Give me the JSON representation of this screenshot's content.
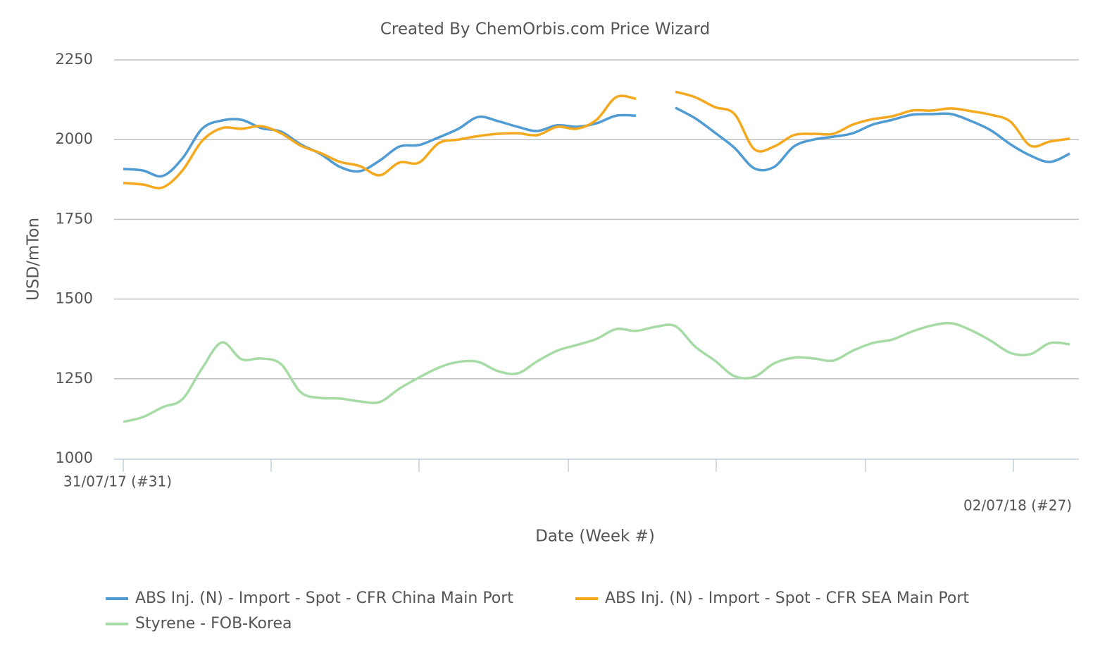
{
  "chart_data": {
    "type": "line",
    "title": "Created By ChemOrbis.com Price Wizard",
    "x_label": "Date (Week #)",
    "y_label": "USD/mTon",
    "categories": [
      "31/07/17 (#31)",
      null,
      null,
      null,
      null,
      null,
      null,
      null,
      null,
      null,
      null,
      null,
      null,
      null,
      null,
      null,
      null,
      null,
      null,
      null,
      null,
      null,
      null,
      null,
      null,
      null,
      null,
      null,
      null,
      null,
      null,
      null,
      null,
      null,
      null,
      null,
      null,
      null,
      null,
      null,
      null,
      null,
      null,
      null,
      null,
      null,
      null,
      null,
      "02/07/18 (#27)"
    ],
    "series": [
      {
        "name": "ABS Inj. (N) - Import - Spot - CFR China Main Port",
        "color": "#4f9bd2",
        "values": [
          1908,
          1903,
          1886,
          1941,
          2034,
          2060,
          2062,
          2036,
          2025,
          1985,
          1955,
          1914,
          1901,
          1934,
          1978,
          1983,
          2007,
          2034,
          2071,
          2058,
          2040,
          2027,
          2045,
          2040,
          2051,
          2075,
          2075,
          null,
          2100,
          2067,
          2022,
          1974,
          1910,
          1914,
          1978,
          2000,
          2009,
          2020,
          2047,
          2062,
          2078,
          2080,
          2080,
          2058,
          2029,
          1985,
          1950,
          1930,
          1956
        ]
      },
      {
        "name": "ABS Inj. (N) - Import - Spot - CFR SEA Main Port",
        "color": "#f4a81d",
        "values": [
          1864,
          1859,
          1850,
          1903,
          1996,
          2036,
          2034,
          2042,
          2020,
          1981,
          1958,
          1930,
          1917,
          1888,
          1928,
          1928,
          1989,
          2000,
          2011,
          2018,
          2020,
          2014,
          2040,
          2034,
          2062,
          2133,
          2128,
          null,
          2150,
          2133,
          2102,
          2080,
          1970,
          1978,
          2014,
          2018,
          2018,
          2047,
          2064,
          2073,
          2091,
          2091,
          2098,
          2089,
          2078,
          2056,
          1981,
          1994,
          2003
        ]
      },
      {
        "name": "Styrene - FOB-Korea",
        "color": "#a6dba6",
        "values": [
          1115,
          1130,
          1161,
          1186,
          1283,
          1364,
          1311,
          1314,
          1296,
          1208,
          1190,
          1188,
          1179,
          1177,
          1219,
          1254,
          1285,
          1303,
          1303,
          1274,
          1267,
          1305,
          1338,
          1356,
          1375,
          1406,
          1400,
          1413,
          1415,
          1351,
          1307,
          1258,
          1256,
          1298,
          1316,
          1314,
          1307,
          1338,
          1362,
          1373,
          1398,
          1417,
          1424,
          1402,
          1369,
          1331,
          1327,
          1362,
          1358
        ]
      }
    ],
    "ylim": [
      1000,
      2250
    ],
    "yticks": [
      1000,
      1250,
      1500,
      1750,
      2000,
      2250
    ],
    "grid": true
  }
}
